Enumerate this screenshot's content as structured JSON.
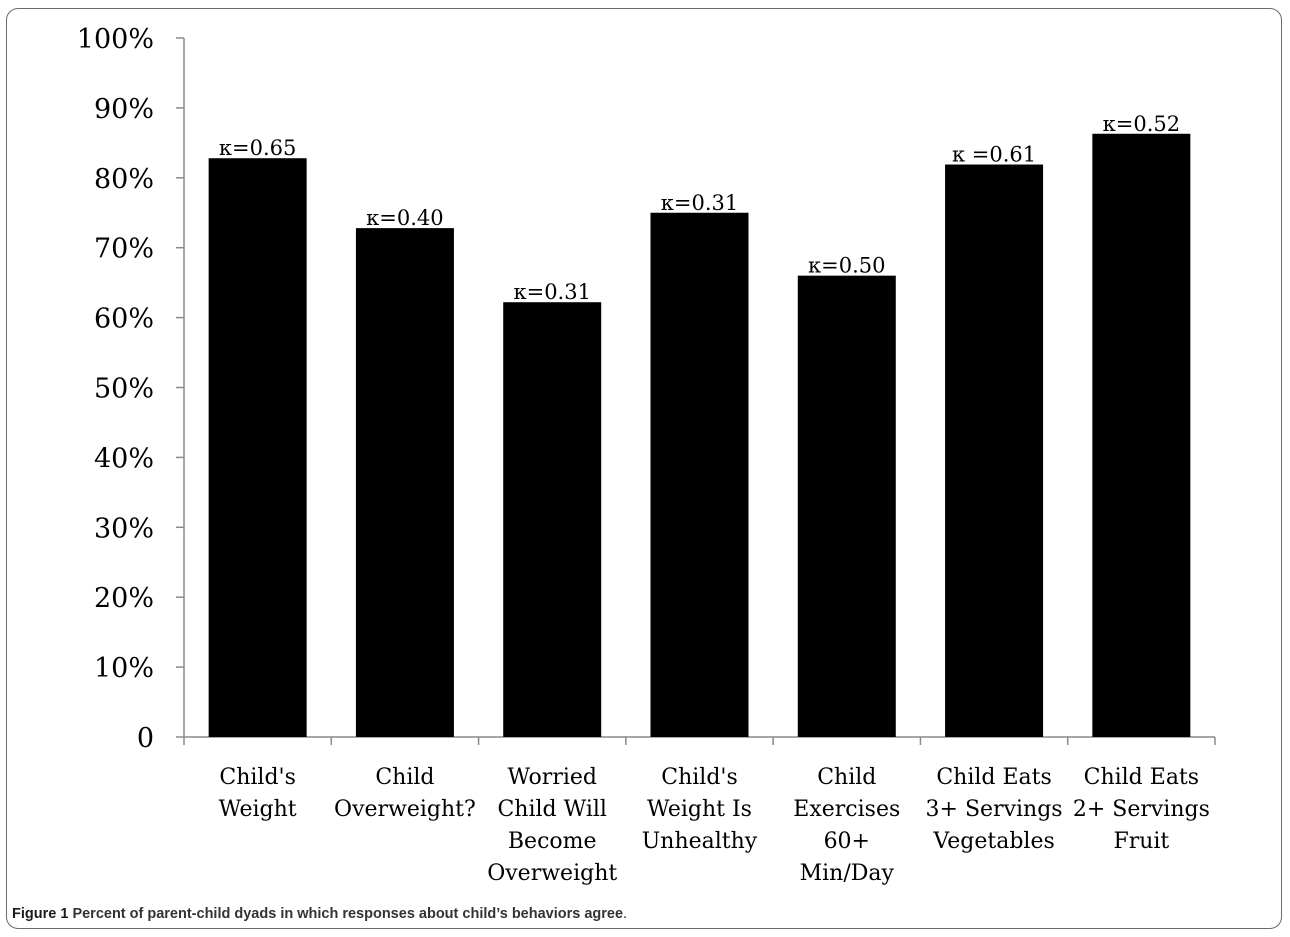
{
  "chart_data": {
    "type": "bar",
    "categories": [
      [
        "Child's",
        "Weight"
      ],
      [
        "Child",
        "Overweight?"
      ],
      [
        "Worried",
        "Child Will",
        "Become",
        "Overweight"
      ],
      [
        "Child's",
        "Weight Is",
        "Unhealthy"
      ],
      [
        "Child",
        "Exercises",
        "60+",
        "Min/Day"
      ],
      [
        "Child Eats",
        "3+ Servings",
        "Vegetables"
      ],
      [
        "Child Eats",
        "2+ Servings",
        "Fruit"
      ]
    ],
    "values": [
      82.8,
      72.8,
      62.2,
      75.0,
      66.0,
      81.9,
      86.3
    ],
    "annotations": [
      "κ=0.65",
      "κ=0.40",
      "κ=0.31",
      "κ=0.31",
      "κ=0.50",
      "κ =0.61",
      "κ=0.52"
    ],
    "yticks": [
      "0",
      "10%",
      "20%",
      "30%",
      "40%",
      "50%",
      "60%",
      "70%",
      "80%",
      "90%",
      "100%"
    ],
    "ylim": [
      0,
      100
    ],
    "bar_color": "#000000",
    "grid": false,
    "legend": "none"
  },
  "caption": {
    "label": "Figure 1",
    "text": "Percent of parent-child dyads in which responses about child’s behaviors agree",
    "end": "."
  }
}
